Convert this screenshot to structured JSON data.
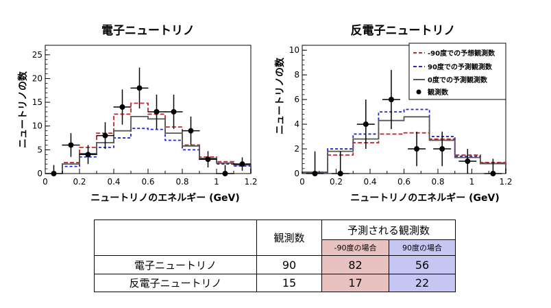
{
  "colors": {
    "minus90": "#c62828",
    "plus90": "#1f24d6",
    "zero": "#555555",
    "observed": "#000000",
    "table_pink": "#e8c2c0",
    "table_blue": "#c6c6f2"
  },
  "chart_data": [
    {
      "type": "bar",
      "title": "電子ニュートリノ",
      "xlabel": "ニュートリノのエネルギー (GeV)",
      "ylabel": "ニュートリノの数",
      "xlim": [
        0,
        1.2
      ],
      "ylim": [
        0,
        27
      ],
      "xticks": [
        "0",
        "0.2",
        "0.4",
        "0.6",
        "0.8",
        "1",
        "1.2"
      ],
      "yticks": [
        "0",
        "5",
        "10",
        "15",
        "20",
        "25"
      ],
      "bin_edges": [
        0.1,
        0.2,
        0.3,
        0.4,
        0.5,
        0.6,
        0.7,
        0.8,
        0.9,
        1.0,
        1.1,
        1.2
      ],
      "series": [
        {
          "key": "minus90",
          "values": [
            2.3,
            5.5,
            8.5,
            12.5,
            14.8,
            12.5,
            9.8,
            6.0,
            3.5,
            2.5,
            2.0
          ]
        },
        {
          "key": "plus90",
          "values": [
            1.5,
            3.5,
            5.5,
            7.5,
            9.5,
            9.3,
            7.0,
            5.0,
            3.0,
            2.0,
            1.6
          ]
        },
        {
          "key": "zero",
          "values": [
            2.0,
            4.2,
            6.5,
            9.0,
            12.0,
            11.5,
            8.5,
            5.8,
            3.2,
            2.2,
            1.8
          ]
        }
      ],
      "observed": {
        "x": [
          0.05,
          0.15,
          0.25,
          0.35,
          0.45,
          0.55,
          0.65,
          0.75,
          0.85,
          0.95,
          1.05,
          1.15
        ],
        "y": [
          0,
          6,
          4,
          8,
          14,
          18,
          13,
          13,
          9,
          3,
          0,
          2
        ],
        "err": [
          1.8,
          2.5,
          2.0,
          2.8,
          3.7,
          4.3,
          3.6,
          3.6,
          3.0,
          1.7,
          1.8,
          1.4
        ]
      }
    },
    {
      "type": "bar",
      "title": "反電子ニュートリノ",
      "xlabel": "ニュートリノのエネルギー (GeV)",
      "ylabel": "ニュートリノの数",
      "xlim": [
        0,
        1.2
      ],
      "ylim": [
        0,
        10.4
      ],
      "xticks": [
        "0",
        "0.2",
        "0.4",
        "0.6",
        "0.8",
        "1",
        "1.2"
      ],
      "yticks": [
        "0",
        "2",
        "4",
        "6",
        "8",
        "10"
      ],
      "bin_edges": [
        0.0,
        0.15,
        0.3,
        0.45,
        0.6,
        0.75,
        0.9,
        1.05,
        1.2
      ],
      "series": [
        {
          "key": "minus90",
          "values": [
            0.1,
            1.5,
            2.5,
            3.2,
            3.3,
            2.8,
            1.5,
            0.9
          ]
        },
        {
          "key": "plus90",
          "values": [
            0.1,
            2.0,
            3.2,
            5.0,
            5.2,
            3.0,
            1.4,
            0.85
          ]
        },
        {
          "key": "zero",
          "values": [
            0.1,
            1.8,
            2.8,
            4.3,
            4.6,
            2.7,
            1.3,
            0.8
          ]
        }
      ],
      "observed": {
        "x": [
          0.075,
          0.225,
          0.375,
          0.525,
          0.675,
          0.825,
          0.975,
          1.125
        ],
        "y": [
          0,
          0,
          4,
          6,
          2,
          2,
          1,
          0
        ],
        "err": [
          1.8,
          1.8,
          2.0,
          2.4,
          1.4,
          1.4,
          1.0,
          1.2
        ]
      },
      "legend": {
        "position": "top-right",
        "items": [
          {
            "key": "minus90",
            "label": "-90度での予想観測数",
            "style": "dashed"
          },
          {
            "key": "plus90",
            "label": "90度での予測観測数",
            "style": "dashed"
          },
          {
            "key": "zero",
            "label": "0度での予測観測数",
            "style": "solid"
          },
          {
            "key": "observed",
            "label": "観測数",
            "style": "point"
          }
        ]
      }
    }
  ],
  "table": {
    "header_observed": "観測数",
    "header_predicted": "予測される観測数",
    "header_m90": "-90度の場合",
    "header_p90": "90度の場合",
    "rows": [
      {
        "label": "電子ニュートリノ",
        "observed": "90",
        "m90": "82",
        "p90": "56"
      },
      {
        "label": "反電子ニュートリノ",
        "observed": "15",
        "m90": "17",
        "p90": "22"
      }
    ]
  }
}
